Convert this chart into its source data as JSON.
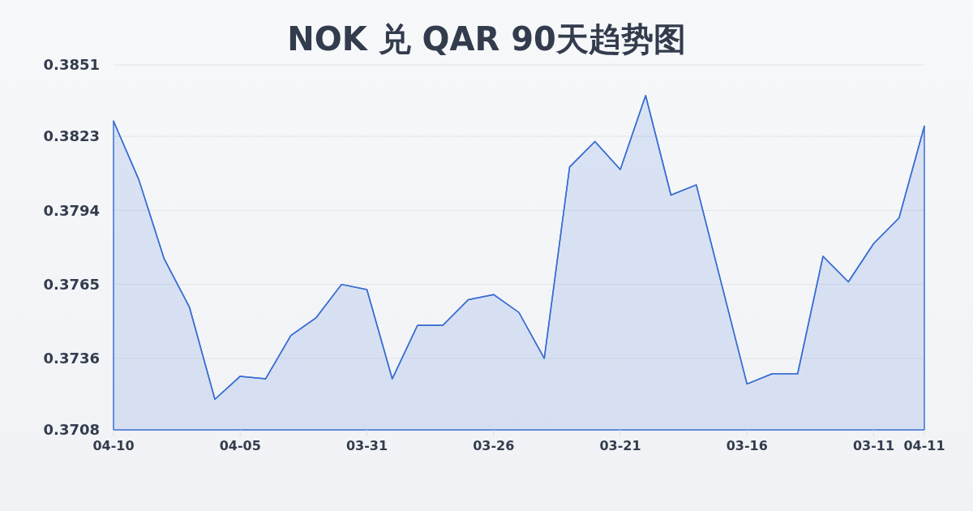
{
  "chart_data": {
    "type": "area",
    "title": "NOK 兑 QAR 90天趋势图",
    "categories": [
      "04-10",
      null,
      null,
      null,
      null,
      "04-05",
      null,
      null,
      null,
      null,
      "03-31",
      null,
      null,
      null,
      null,
      "03-26",
      null,
      null,
      null,
      null,
      "03-21",
      null,
      null,
      null,
      null,
      "03-16",
      null,
      null,
      null,
      null,
      "03-11",
      null,
      "04-11"
    ],
    "series": [
      {
        "color": "#3b6fd4",
        "values": [
          0.3829,
          0.3806,
          0.3775,
          0.3756,
          0.372,
          0.3729,
          0.3728,
          0.3745,
          0.3752,
          0.3765,
          0.3763,
          0.3728,
          0.3749,
          0.3749,
          0.3759,
          0.3761,
          0.3754,
          0.3736,
          0.3811,
          0.3821,
          0.381,
          0.3839,
          0.38,
          0.3804,
          0.3765,
          0.3726,
          0.373,
          0.373,
          0.3776,
          0.3766,
          0.3781,
          0.3791,
          0.3827
        ]
      }
    ],
    "ylim": [
      0.3708,
      0.3851
    ],
    "yticks": [
      0.3708,
      0.3736,
      0.3765,
      0.3794,
      0.3823,
      0.3851
    ],
    "grid": "y"
  }
}
